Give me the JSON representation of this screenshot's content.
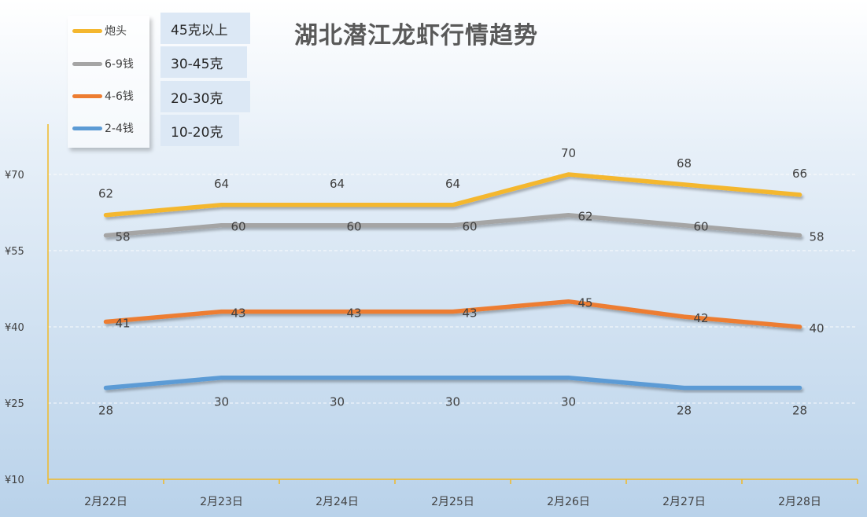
{
  "title": "湖北潜江龙虾行情趋势",
  "legend": [
    {
      "label": "炮头",
      "color": "#f4b72f"
    },
    {
      "label": "6-9钱",
      "color": "#a5a5a5"
    },
    {
      "label": "4-6钱",
      "color": "#ed7d31"
    },
    {
      "label": "2-4钱",
      "color": "#5b9bd5"
    }
  ],
  "size_labels": [
    "45克以上",
    "30-45克",
    "20-30克",
    "10-20克"
  ],
  "chart_data": {
    "type": "line",
    "title": "湖北潜江龙虾行情趋势",
    "categories": [
      "2月22日",
      "2月23日",
      "2月24日",
      "2月25日",
      "2月26日",
      "2月27日",
      "2月28日"
    ],
    "series": [
      {
        "name": "炮头",
        "color": "#f4b72f",
        "values": [
          62,
          64,
          64,
          64,
          70,
          68,
          66
        ]
      },
      {
        "name": "6-9钱",
        "color": "#a5a5a5",
        "values": [
          58,
          60,
          60,
          60,
          62,
          60,
          58
        ]
      },
      {
        "name": "4-6钱",
        "color": "#ed7d31",
        "values": [
          41,
          43,
          43,
          43,
          45,
          42,
          40
        ]
      },
      {
        "name": "2-4钱",
        "color": "#5b9bd5",
        "values": [
          28,
          30,
          30,
          30,
          30,
          28,
          28
        ]
      }
    ],
    "y_ticks": [
      "¥10",
      "¥25",
      "¥40",
      "¥55",
      "¥70"
    ],
    "ylim": [
      10,
      70
    ],
    "grid": true,
    "legend_position": "top-left"
  }
}
